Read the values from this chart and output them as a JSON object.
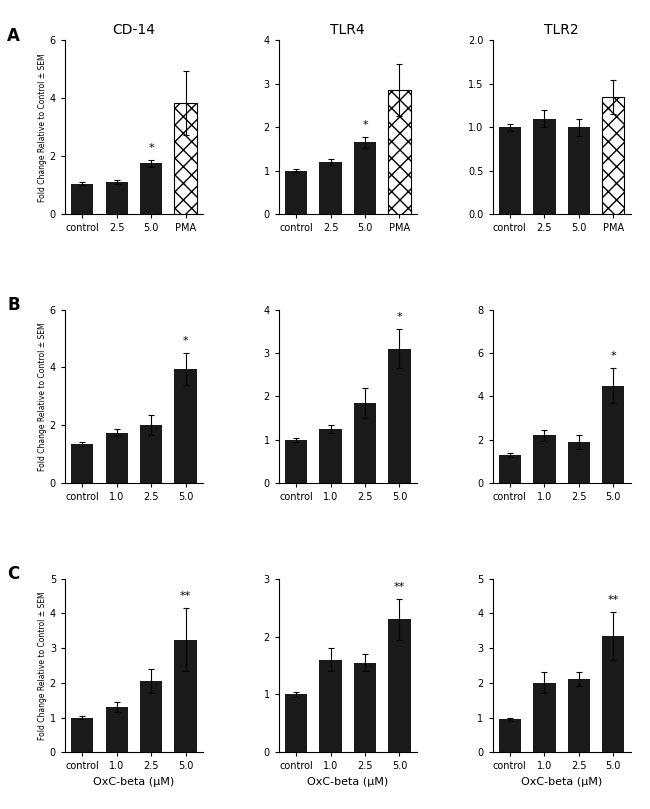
{
  "row_A": {
    "categories": [
      "control",
      "2.5",
      "5.0",
      "PMA"
    ],
    "CD14": {
      "title": "CD-14",
      "values": [
        1.05,
        1.12,
        1.75,
        3.85
      ],
      "errors": [
        0.05,
        0.07,
        0.12,
        1.1
      ],
      "ylim": [
        0,
        6
      ],
      "yticks": [
        0,
        2,
        4,
        6
      ],
      "hatch": [
        null,
        null,
        null,
        "xx"
      ],
      "sig": [
        null,
        null,
        "*",
        null
      ]
    },
    "TLR4": {
      "title": "TLR4",
      "values": [
        1.0,
        1.2,
        1.65,
        2.85
      ],
      "errors": [
        0.04,
        0.07,
        0.12,
        0.6
      ],
      "ylim": [
        0,
        4
      ],
      "yticks": [
        0,
        1,
        2,
        3,
        4
      ],
      "hatch": [
        null,
        null,
        null,
        "xx"
      ],
      "sig": [
        null,
        null,
        "*",
        null
      ]
    },
    "TLR2": {
      "title": "TLR2",
      "values": [
        1.0,
        1.1,
        1.0,
        1.35
      ],
      "errors": [
        0.04,
        0.1,
        0.1,
        0.2
      ],
      "ylim": [
        0,
        2.0
      ],
      "yticks": [
        0.0,
        0.5,
        1.0,
        1.5,
        2.0
      ],
      "hatch": [
        null,
        null,
        null,
        "xx"
      ],
      "sig": [
        null,
        null,
        null,
        null
      ]
    }
  },
  "row_B": {
    "categories": [
      "control",
      "1.0",
      "2.5",
      "5.0"
    ],
    "CD14": {
      "title": "",
      "values": [
        1.35,
        1.75,
        2.0,
        3.95
      ],
      "errors": [
        0.06,
        0.12,
        0.35,
        0.55
      ],
      "ylim": [
        0,
        6
      ],
      "yticks": [
        0,
        2,
        4,
        6
      ],
      "hatch": [
        null,
        null,
        null,
        null
      ],
      "sig": [
        null,
        null,
        null,
        "*"
      ]
    },
    "TLR4": {
      "title": "",
      "values": [
        1.0,
        1.25,
        1.85,
        3.1
      ],
      "errors": [
        0.05,
        0.1,
        0.35,
        0.45
      ],
      "ylim": [
        0,
        4
      ],
      "yticks": [
        0,
        1,
        2,
        3,
        4
      ],
      "hatch": [
        null,
        null,
        null,
        null
      ],
      "sig": [
        null,
        null,
        null,
        "*"
      ]
    },
    "TLR2": {
      "title": "",
      "values": [
        1.3,
        2.2,
        1.9,
        4.5
      ],
      "errors": [
        0.08,
        0.25,
        0.3,
        0.8
      ],
      "ylim": [
        0,
        8
      ],
      "yticks": [
        0,
        2,
        4,
        6,
        8
      ],
      "hatch": [
        null,
        null,
        null,
        null
      ],
      "sig": [
        null,
        null,
        null,
        "*"
      ]
    }
  },
  "row_C": {
    "categories": [
      "control",
      "1.0",
      "2.5",
      "5.0"
    ],
    "CD14": {
      "title": "",
      "values": [
        1.0,
        1.3,
        2.05,
        3.25
      ],
      "errors": [
        0.05,
        0.15,
        0.35,
        0.9
      ],
      "ylim": [
        0,
        5
      ],
      "yticks": [
        0,
        1,
        2,
        3,
        4,
        5
      ],
      "hatch": [
        null,
        null,
        null,
        null
      ],
      "sig": [
        null,
        null,
        null,
        "**"
      ],
      "xlabel": "OxC-beta (μM)"
    },
    "TLR4": {
      "title": "",
      "values": [
        1.0,
        1.6,
        1.55,
        2.3
      ],
      "errors": [
        0.05,
        0.2,
        0.15,
        0.35
      ],
      "ylim": [
        0,
        3
      ],
      "yticks": [
        0,
        1,
        2,
        3
      ],
      "hatch": [
        null,
        null,
        null,
        null
      ],
      "sig": [
        null,
        null,
        null,
        "**"
      ],
      "xlabel": "OxC-beta (μM)"
    },
    "TLR2": {
      "title": "",
      "values": [
        0.95,
        2.0,
        2.1,
        3.35
      ],
      "errors": [
        0.05,
        0.3,
        0.2,
        0.7
      ],
      "ylim": [
        0,
        5
      ],
      "yticks": [
        0,
        1,
        2,
        3,
        4,
        5
      ],
      "hatch": [
        null,
        null,
        null,
        null
      ],
      "sig": [
        null,
        null,
        null,
        "**"
      ],
      "xlabel": "OxC-beta (μM)"
    }
  },
  "ylabel": "Fold Change Relative to Control ± SEM",
  "bar_color": "#1a1a1a",
  "row_labels": [
    "A",
    "B",
    "C"
  ],
  "col_titles": [
    "CD-14",
    "TLR4",
    "TLR2"
  ]
}
